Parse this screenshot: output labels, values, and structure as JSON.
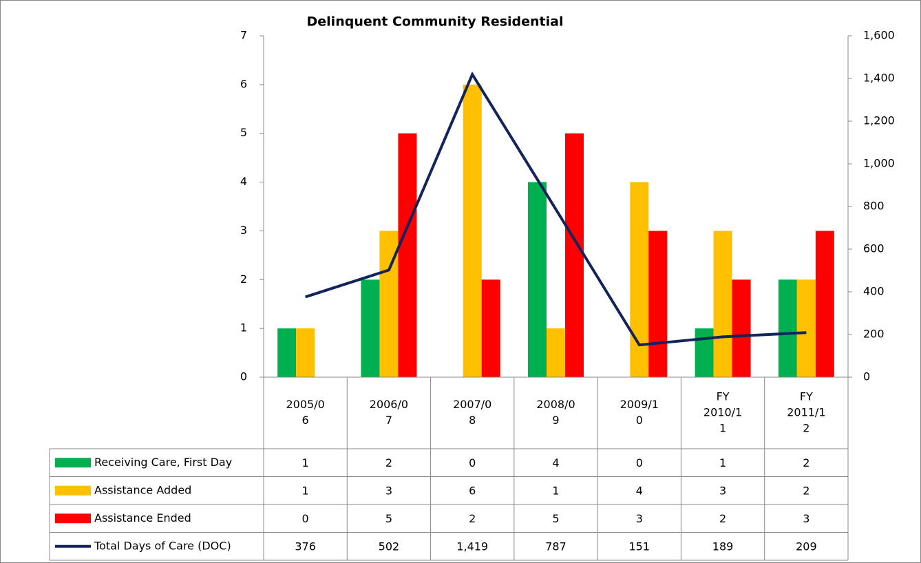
{
  "chart_data": {
    "type": "bar",
    "title": "Delinquent Community Residential",
    "categories": [
      [
        "2005/0",
        "6"
      ],
      [
        "2006/0",
        "7"
      ],
      [
        "2007/0",
        "8"
      ],
      [
        "2008/0",
        "9"
      ],
      [
        "2009/1",
        "0"
      ],
      [
        "FY",
        "2010/1",
        "1"
      ],
      [
        "FY",
        "2011/1",
        "2"
      ]
    ],
    "ylim": [
      0,
      7
    ],
    "yticks": [
      0,
      1,
      2,
      3,
      4,
      5,
      6,
      7
    ],
    "y2lim": [
      0,
      1600
    ],
    "y2ticks": [
      0,
      200,
      400,
      600,
      800,
      {
        "value": 1000,
        "label": "1,000"
      },
      {
        "value": 1200,
        "label": "1,200"
      },
      {
        "value": 1400,
        "label": "1,400"
      },
      {
        "value": 1600,
        "label": "1,600"
      }
    ],
    "series": [
      {
        "name": "Receiving Care, First Day",
        "color": "#00b050",
        "type": "bar",
        "values": [
          1,
          2,
          0,
          4,
          0,
          1,
          2
        ]
      },
      {
        "name": "Assistance Added",
        "color": "#ffc000",
        "type": "bar",
        "values": [
          1,
          3,
          6,
          1,
          4,
          3,
          2
        ]
      },
      {
        "name": "Assistance Ended",
        "color": "#ff0000",
        "type": "bar",
        "values": [
          0,
          5,
          2,
          5,
          3,
          2,
          3
        ]
      },
      {
        "name": "Total Days of Care (DOC)",
        "color": "#13235b",
        "type": "line",
        "axis": "y2",
        "values": [
          376,
          502,
          1419,
          787,
          151,
          189,
          209
        ],
        "value_labels": [
          "376",
          "502",
          "1,419",
          "787",
          "151",
          "189",
          "209"
        ]
      }
    ],
    "data_table": true
  }
}
